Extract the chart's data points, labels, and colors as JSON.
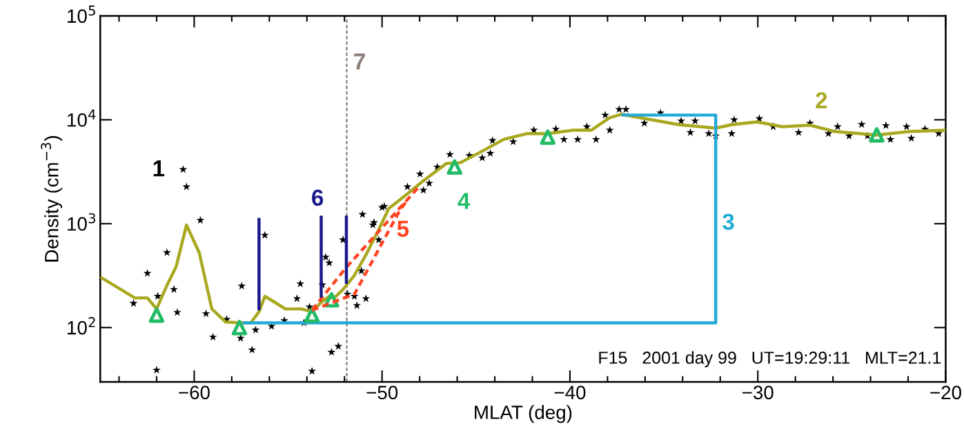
{
  "chart_data": {
    "type": "line",
    "xlabel": "MLAT (deg)",
    "ylabel": "Density (cm$^{−3}$)",
    "log": "y",
    "grid": false,
    "xlim": [
      -65,
      -20
    ],
    "xticks": [
      -60,
      -50,
      -40,
      -30,
      -20
    ],
    "ylim": [
      30,
      100000
    ],
    "yticks": [
      {
        "value": 100,
        "label": "10$^{2}$"
      },
      {
        "value": 1000,
        "label": "10$^{3}$"
      },
      {
        "value": 10000,
        "label": "10$^{4}$"
      },
      {
        "value": 100000,
        "label": "10$^{5}$"
      }
    ],
    "series": [
      {
        "type": "scatter",
        "name": "1",
        "marker": "star",
        "color": "#000000",
        "x": [
          -60.59,
          -60.41,
          -59.67,
          -61.45,
          -62.49,
          -63.23,
          -61.94,
          -61.08,
          -60.9,
          -59.37,
          -59.0,
          -58.27,
          -57.47,
          -57.53,
          -56.92,
          -56.73,
          -56.24,
          -55.88,
          -55.2,
          -54.35,
          -54.53,
          -54.16,
          -53.86,
          -53.73,
          -53.0,
          -52.81,
          -53.18,
          -52.69,
          -52.33,
          -52.08,
          -51.84,
          -51.47,
          -51.34,
          -50.86,
          -51.1,
          -51.04,
          -50.43,
          -50.0,
          -62.0,
          -50.49,
          -50.18,
          -49.88,
          -48.65,
          -47.98,
          -47.49,
          -47.8,
          -47.06,
          -46.39,
          -45.35,
          -44.67,
          -44.24,
          -44.12,
          -43.02,
          -41.92,
          -40.75,
          -40.32,
          -39.59,
          -39.1,
          -38.61,
          -38.12,
          -37.38,
          -37.88,
          -37.02,
          -35.18,
          -36.04,
          -34.08,
          -33.34,
          -33.59,
          -32.61,
          -32.24,
          -31.26,
          -31.39,
          -29.92,
          -29.18,
          -27.83,
          -27.22,
          -26.24,
          -25.75,
          -25.14,
          -24.47,
          -24.16,
          -23.18,
          -22.94,
          -22.08,
          -21.83,
          -21.1,
          -20.37
        ],
        "values": [
          3325,
          2265,
          1080,
          527,
          333,
          171,
          200,
          233,
          140,
          136,
          81,
          120,
          251,
          79,
          61,
          95,
          774,
          103,
          117,
          264,
          190,
          111,
          158,
          38,
          476,
          419,
          258,
          58,
          66,
          699,
          210,
          200,
          163,
          190,
          351,
          1227,
          1026,
          1431,
          39,
          974,
          699,
          1468,
          2265,
          3006,
          2449,
          2100,
          3510,
          4642,
          4528,
          4300,
          4760,
          6310,
          6150,
          7943,
          8150,
          6470,
          6470,
          8580,
          6470,
          11090,
          12590,
          7943,
          12590,
          11660,
          9260,
          9750,
          9750,
          7550,
          7360,
          7000,
          10000,
          7360,
          10260,
          8580,
          7550,
          9260,
          7360,
          8580,
          7000,
          9020,
          7000,
          8800,
          6470,
          8580,
          6640,
          8150,
          7360
        ]
      },
      {
        "name": "2",
        "color": "#a8a820",
        "x": [
          -65,
          -63.16,
          -62.49,
          -62.0,
          -61.5,
          -60.96,
          -60.41,
          -59.73,
          -59.06,
          -58.32,
          -57.41,
          -56.99,
          -56.55,
          -56.24,
          -55.75,
          -55.14,
          -54.28,
          -53.73,
          -53.3,
          -52.81,
          -52.58,
          -52.08,
          -51.48,
          -50.86,
          -50.24,
          -49.64,
          -49.02,
          -47.8,
          -46.57,
          -45.84,
          -44.86,
          -43.51,
          -42.28,
          -41.18,
          -39.83,
          -38.85,
          -38.48,
          -37.88,
          -37.26,
          -36.05,
          -34.21,
          -32.24,
          -31.39,
          -30.04,
          -28.69,
          -27.23,
          -25.87,
          -23.67,
          -21.96,
          -20
        ],
        "values": [
          307,
          193,
          193,
          151,
          244,
          386,
          970,
          525,
          151,
          113,
          111,
          111,
          142,
          200,
          177,
          151,
          151,
          142,
          171,
          200,
          190,
          233,
          316,
          501,
          832,
          1402,
          1711,
          2590,
          3802,
          3860,
          4786,
          6500,
          7360,
          7360,
          7943,
          7943,
          8850,
          10470,
          11300,
          10300,
          8980,
          8320,
          8980,
          9550,
          8580,
          8880,
          7700,
          7130,
          7700,
          7940
        ]
      },
      {
        "name": "3",
        "color": "#22aad5",
        "x": [
          -57.41,
          -32.24,
          -32.24,
          -37.26
        ],
        "values": [
          111,
          111,
          11100,
          11100
        ]
      },
      {
        "type": "scatter",
        "name": "4",
        "marker": "triangle",
        "color": "#22bb66",
        "x": [
          -62.0,
          -57.59,
          -53.73,
          -52.69,
          -46.14,
          -41.18,
          -23.67
        ],
        "values": [
          132,
          100,
          132,
          185,
          3510,
          6810,
          7170
        ]
      },
      {
        "name": "5",
        "line_style": "dashed",
        "color": "#ff4422",
        "x": [
          -53.73,
          -51.96,
          -48.04,
          -51.0,
          -53.73,
          -51.47,
          -49.14,
          -48.65
        ],
        "values": [
          147,
          369,
          2265,
          null,
          147,
          210,
          1259,
          1711
        ]
      },
      {
        "name": "6",
        "color": "#1a1a8c",
        "x": [
          -56.55,
          -56.55,
          -55.0,
          -53.24,
          -53.24,
          -52.5,
          -51.9,
          -51.9
        ],
        "values": [
          1137,
          147,
          null,
          1197,
          194,
          null,
          1197,
          264
        ]
      }
    ],
    "ref_lines": [
      {
        "axis": "x",
        "value": -51.88,
        "color": "#8c7f7a",
        "line_style": "dashed"
      }
    ],
    "annotations": [
      "7",
      "F15   2001 day 99   UT=19:29:11   MLT=21.1"
    ]
  }
}
